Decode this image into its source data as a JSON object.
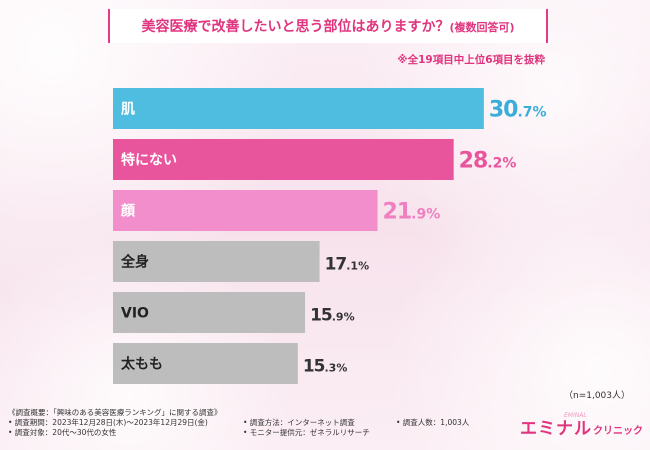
{
  "title": "美容医療で改善したいと思う部位はありますか？",
  "title_suffix": "(複数回答可)",
  "subnote": "※全19項目中上位6項目を抜粋",
  "n_note": "（n=1,003人）",
  "chart_data": {
    "type": "bar",
    "orientation": "horizontal",
    "title": "美容医療で改善したいと思う部位はありますか？(複数回答可)",
    "categories": [
      "肌",
      "特にない",
      "顔",
      "全身",
      "VIO",
      "太もも"
    ],
    "values": [
      30.7,
      28.2,
      21.9,
      17.1,
      15.9,
      15.3
    ],
    "labels": [
      "30.7%",
      "28.2%",
      "21.9%",
      "17.1%",
      "15.9%",
      "15.3%"
    ],
    "value_unit": "%",
    "xlim": [
      0,
      36
    ],
    "colors": [
      "#4fbde0",
      "#e8559c",
      "#f18ecb",
      "#bdbdbd",
      "#bdbdbd",
      "#bdbdbd"
    ],
    "label_colors": [
      "#3aaed8",
      "#e8559c",
      "#ef7fc0",
      "#333333",
      "#333333",
      "#333333"
    ]
  },
  "footer": {
    "line1_col1": "《調査概要：「興味のある美容医療ランキング」に関する調査》",
    "line2_col1": "• 調査期間：2023年12月28日(木)～2023年12月29日(金)",
    "line2_col2": "• 調査方法：インターネット調査",
    "line2_col3": "• 調査人数：1,003人",
    "line3_col1": "• 調査対象：20代～30代の女性",
    "line3_col2": "• モニター提供元：ゼネラルリサーチ"
  },
  "logo": {
    "main": "エミナル",
    "sub": "クリニック",
    "tiny": "EMINAL"
  }
}
